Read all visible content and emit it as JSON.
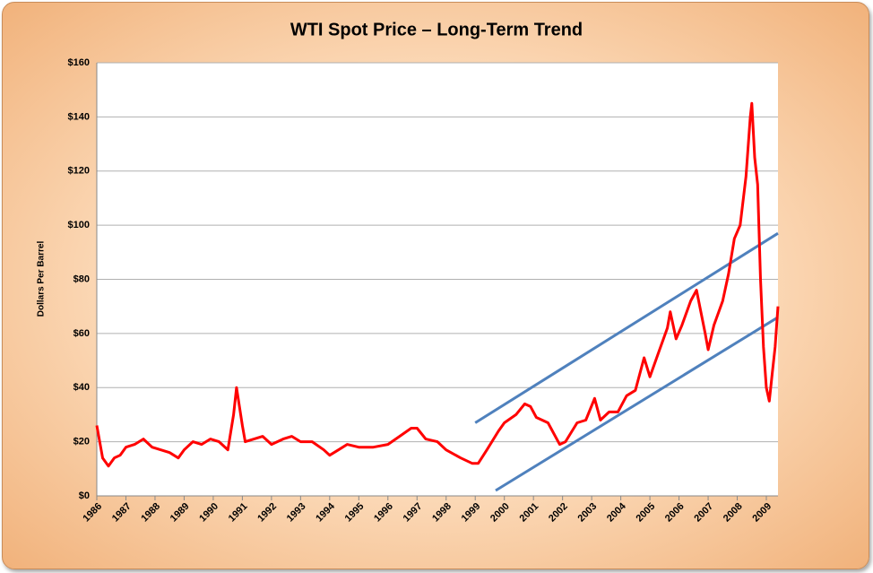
{
  "chart_data": {
    "type": "line",
    "title": "WTI Spot Price – Long-Term Trend",
    "y_label": "Dollars Per Barrel",
    "x": [
      1986.0,
      1986.2,
      1986.4,
      1986.6,
      1986.8,
      1987.0,
      1987.3,
      1987.6,
      1987.9,
      1988.2,
      1988.5,
      1988.8,
      1989.0,
      1989.3,
      1989.6,
      1989.9,
      1990.2,
      1990.5,
      1990.7,
      1990.8,
      1991.0,
      1991.1,
      1991.4,
      1991.7,
      1992.0,
      1992.4,
      1992.7,
      1993.0,
      1993.4,
      1993.8,
      1994.0,
      1994.3,
      1994.6,
      1995.0,
      1995.5,
      1996.0,
      1996.4,
      1996.8,
      1997.0,
      1997.3,
      1997.7,
      1998.0,
      1998.5,
      1998.9,
      1999.1,
      1999.4,
      1999.8,
      2000.0,
      2000.4,
      2000.7,
      2000.9,
      2001.1,
      2001.5,
      2001.9,
      2002.1,
      2002.5,
      2002.8,
      2003.1,
      2003.3,
      2003.6,
      2003.9,
      2004.2,
      2004.5,
      2004.8,
      2005.0,
      2005.3,
      2005.6,
      2005.7,
      2005.9,
      2006.1,
      2006.4,
      2006.6,
      2006.9,
      2007.0,
      2007.2,
      2007.5,
      2007.7,
      2007.9,
      2008.1,
      2008.3,
      2008.45,
      2008.5,
      2008.6,
      2008.7,
      2008.8,
      2008.9,
      2009.0,
      2009.1,
      2009.2,
      2009.3,
      2009.4
    ],
    "series": [
      {
        "name": "WTI Spot Price",
        "color": "#ff0000",
        "values": [
          26,
          14,
          11,
          14,
          15,
          18,
          19,
          21,
          18,
          17,
          16,
          14,
          17,
          20,
          19,
          21,
          20,
          17,
          30,
          40,
          26,
          20,
          21,
          22,
          19,
          21,
          22,
          20,
          20,
          17,
          15,
          17,
          19,
          18,
          18,
          19,
          22,
          25,
          25,
          21,
          20,
          17,
          14,
          12,
          12,
          17,
          24,
          27,
          30,
          34,
          33,
          29,
          27,
          19,
          20,
          27,
          28,
          36,
          28,
          31,
          31,
          37,
          39,
          51,
          44,
          53,
          62,
          68,
          58,
          63,
          72,
          76,
          60,
          54,
          63,
          72,
          82,
          95,
          100,
          118,
          140,
          145,
          125,
          115,
          80,
          55,
          40,
          35,
          45,
          55,
          70
        ]
      }
    ],
    "trend_lines": [
      {
        "color": "#4f81bd",
        "x": [
          1999.0,
          2009.4
        ],
        "values": [
          27,
          97
        ]
      },
      {
        "color": "#4f81bd",
        "x": [
          1999.7,
          2009.4
        ],
        "values": [
          2,
          66
        ]
      }
    ],
    "xlim": [
      1986,
      2009.4
    ],
    "xticks": [
      1986,
      1987,
      1988,
      1989,
      1990,
      1991,
      1992,
      1993,
      1994,
      1995,
      1996,
      1997,
      1998,
      1999,
      2000,
      2001,
      2002,
      2003,
      2004,
      2005,
      2006,
      2007,
      2008,
      2009
    ],
    "ylim": [
      0,
      160
    ],
    "yticks": [
      {
        "value": 0,
        "label": "$0"
      },
      {
        "value": 20,
        "label": "$20"
      },
      {
        "value": 40,
        "label": "$40"
      },
      {
        "value": 60,
        "label": "$60"
      },
      {
        "value": 80,
        "label": "$80"
      },
      {
        "value": 100,
        "label": "$100"
      },
      {
        "value": 120,
        "label": "$120"
      },
      {
        "value": 140,
        "label": "$140"
      },
      {
        "value": 160,
        "label": "$160"
      }
    ],
    "grid": true
  }
}
